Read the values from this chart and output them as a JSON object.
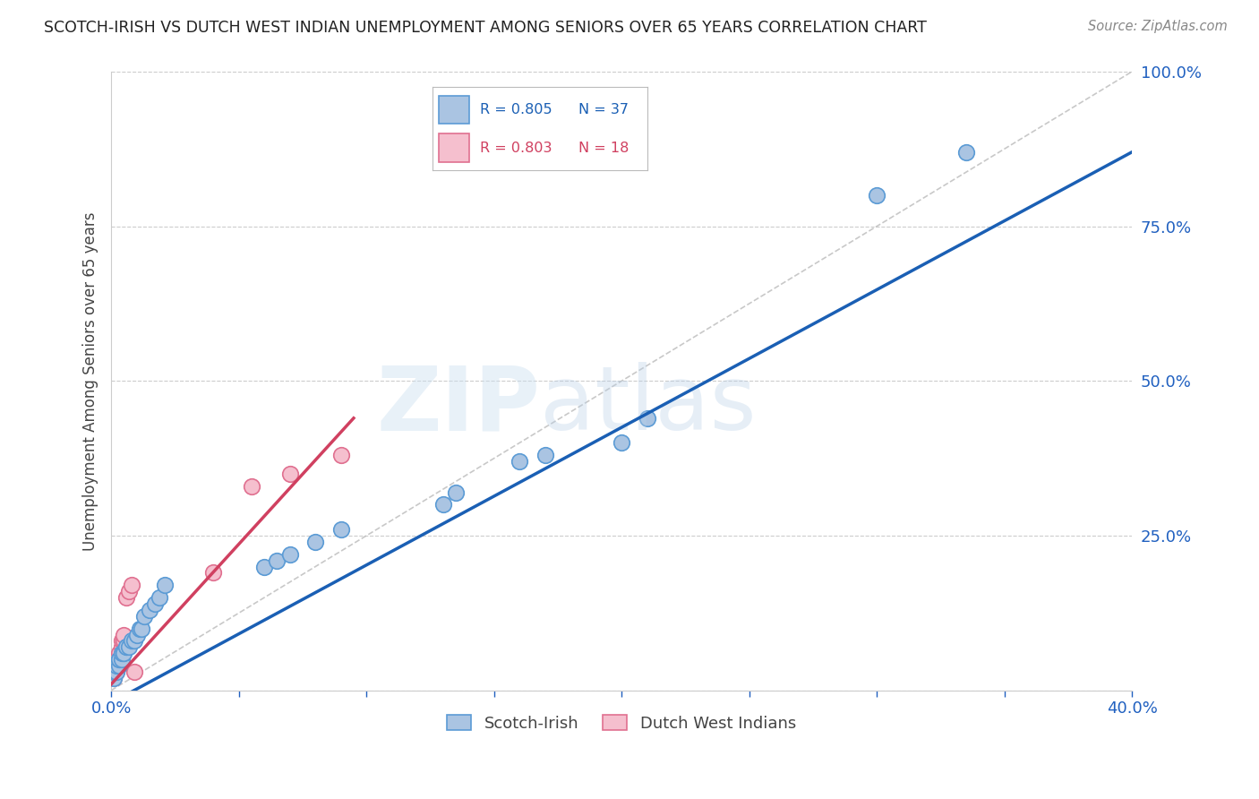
{
  "title": "SCOTCH-IRISH VS DUTCH WEST INDIAN UNEMPLOYMENT AMONG SENIORS OVER 65 YEARS CORRELATION CHART",
  "source": "Source: ZipAtlas.com",
  "ylabel": "Unemployment Among Seniors over 65 years",
  "xlim": [
    0.0,
    0.4
  ],
  "ylim": [
    0.0,
    1.0
  ],
  "xticks": [
    0.0,
    0.05,
    0.1,
    0.15,
    0.2,
    0.25,
    0.3,
    0.35,
    0.4
  ],
  "xtick_labels": [
    "0.0%",
    "",
    "",
    "",
    "",
    "",
    "",
    "",
    "40.0%"
  ],
  "yticks": [
    0.0,
    0.25,
    0.5,
    0.75,
    1.0
  ],
  "ytick_labels": [
    "",
    "25.0%",
    "50.0%",
    "75.0%",
    "100.0%"
  ],
  "scotch_irish_x": [
    0.001,
    0.001,
    0.002,
    0.002,
    0.003,
    0.003,
    0.003,
    0.004,
    0.004,
    0.005,
    0.005,
    0.006,
    0.006,
    0.007,
    0.008,
    0.009,
    0.01,
    0.011,
    0.012,
    0.013,
    0.015,
    0.017,
    0.019,
    0.021,
    0.06,
    0.065,
    0.07,
    0.08,
    0.09,
    0.13,
    0.135,
    0.16,
    0.17,
    0.2,
    0.21,
    0.3,
    0.335
  ],
  "scotch_irish_y": [
    0.02,
    0.03,
    0.03,
    0.04,
    0.04,
    0.05,
    0.05,
    0.05,
    0.06,
    0.06,
    0.06,
    0.07,
    0.07,
    0.07,
    0.08,
    0.08,
    0.09,
    0.1,
    0.1,
    0.12,
    0.13,
    0.14,
    0.15,
    0.17,
    0.2,
    0.21,
    0.22,
    0.24,
    0.26,
    0.3,
    0.32,
    0.37,
    0.38,
    0.4,
    0.44,
    0.8,
    0.87
  ],
  "dutch_x": [
    0.001,
    0.001,
    0.002,
    0.002,
    0.003,
    0.003,
    0.004,
    0.004,
    0.005,
    0.005,
    0.006,
    0.007,
    0.008,
    0.009,
    0.04,
    0.055,
    0.07,
    0.09
  ],
  "dutch_y": [
    0.02,
    0.03,
    0.03,
    0.04,
    0.05,
    0.06,
    0.07,
    0.08,
    0.08,
    0.09,
    0.15,
    0.16,
    0.17,
    0.03,
    0.19,
    0.33,
    0.35,
    0.38
  ],
  "scotch_irish_color": "#aac4e2",
  "scotch_irish_edge": "#5b9bd5",
  "dutch_color": "#f5bfce",
  "dutch_edge": "#e07090",
  "scotch_line_color": "#1a5fb4",
  "dutch_line_color": "#d04060",
  "diag_color": "#bbbbbb",
  "legend_R_scotch": "R = 0.805",
  "legend_N_scotch": "N = 37",
  "legend_R_dutch": "R = 0.803",
  "legend_N_dutch": "N = 18",
  "background_color": "#ffffff",
  "title_color": "#222222",
  "source_color": "#888888",
  "axis_label_color": "#444444",
  "tick_color_x": "#2060c0",
  "tick_color_y": "#2060c0",
  "scotch_line_x0": 0.0,
  "scotch_line_y0": -0.02,
  "scotch_line_x1": 0.4,
  "scotch_line_y1": 0.87,
  "dutch_line_x0": 0.0,
  "dutch_line_y0": 0.01,
  "dutch_line_x1": 0.095,
  "dutch_line_y1": 0.44
}
